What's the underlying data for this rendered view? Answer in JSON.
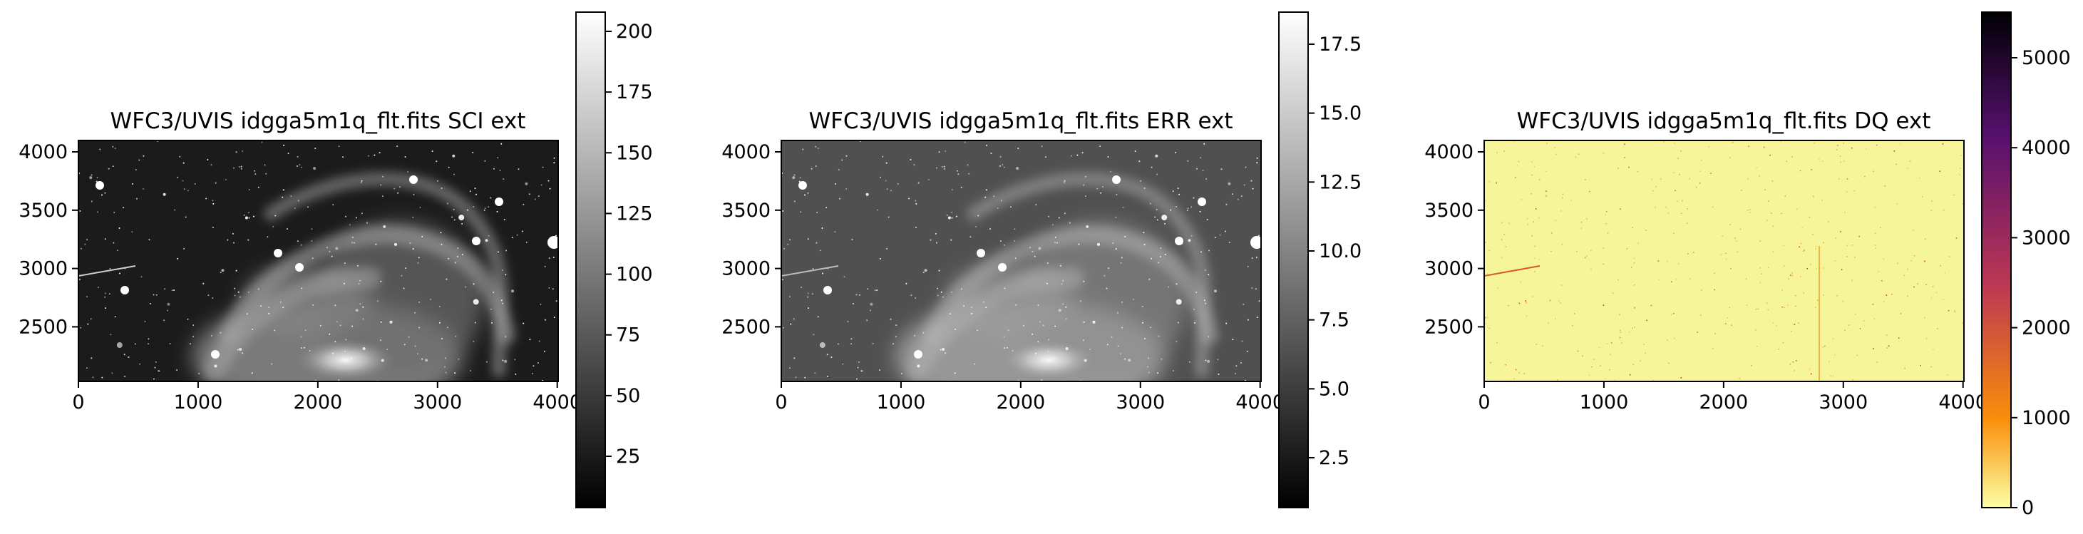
{
  "panels": [
    {
      "id": "sci",
      "title": "WFC3/UVIS idgga5m1q_flt.fits SCI ext",
      "x_ticks": [
        "0",
        "1000",
        "2000",
        "3000",
        "4000"
      ],
      "y_ticks": [
        "4000",
        "3500",
        "3000",
        "2500"
      ],
      "colormap": "gray",
      "colorbar_ticks": [
        "200",
        "175",
        "150",
        "125",
        "100",
        "75",
        "50",
        "25"
      ]
    },
    {
      "id": "err",
      "title": "WFC3/UVIS idgga5m1q_flt.fits ERR ext",
      "x_ticks": [
        "0",
        "1000",
        "2000",
        "3000",
        "4000"
      ],
      "y_ticks": [
        "4000",
        "3500",
        "3000",
        "2500"
      ],
      "colormap": "gray",
      "colorbar_ticks": [
        "17.5",
        "15.0",
        "12.5",
        "10.0",
        "7.5",
        "5.0",
        "2.5"
      ]
    },
    {
      "id": "dq",
      "title": "WFC3/UVIS idgga5m1q_flt.fits DQ ext",
      "x_ticks": [
        "0",
        "1000",
        "2000",
        "3000",
        "4000"
      ],
      "y_ticks": [
        "4000",
        "3500",
        "3000",
        "2500"
      ],
      "colormap": "inferno_r",
      "colorbar_ticks": [
        "5000",
        "4000",
        "3000",
        "2000",
        "1000",
        "0"
      ]
    }
  ],
  "colors": {
    "gray_low": "#000000",
    "gray_high": "#ffffff",
    "inferno_r_stops": [
      "#fcffa4",
      "#f98e09",
      "#bc3754",
      "#57106e",
      "#000004"
    ],
    "dq_background": "#f6f59a",
    "dq_hotpixel": "#d9552a"
  }
}
